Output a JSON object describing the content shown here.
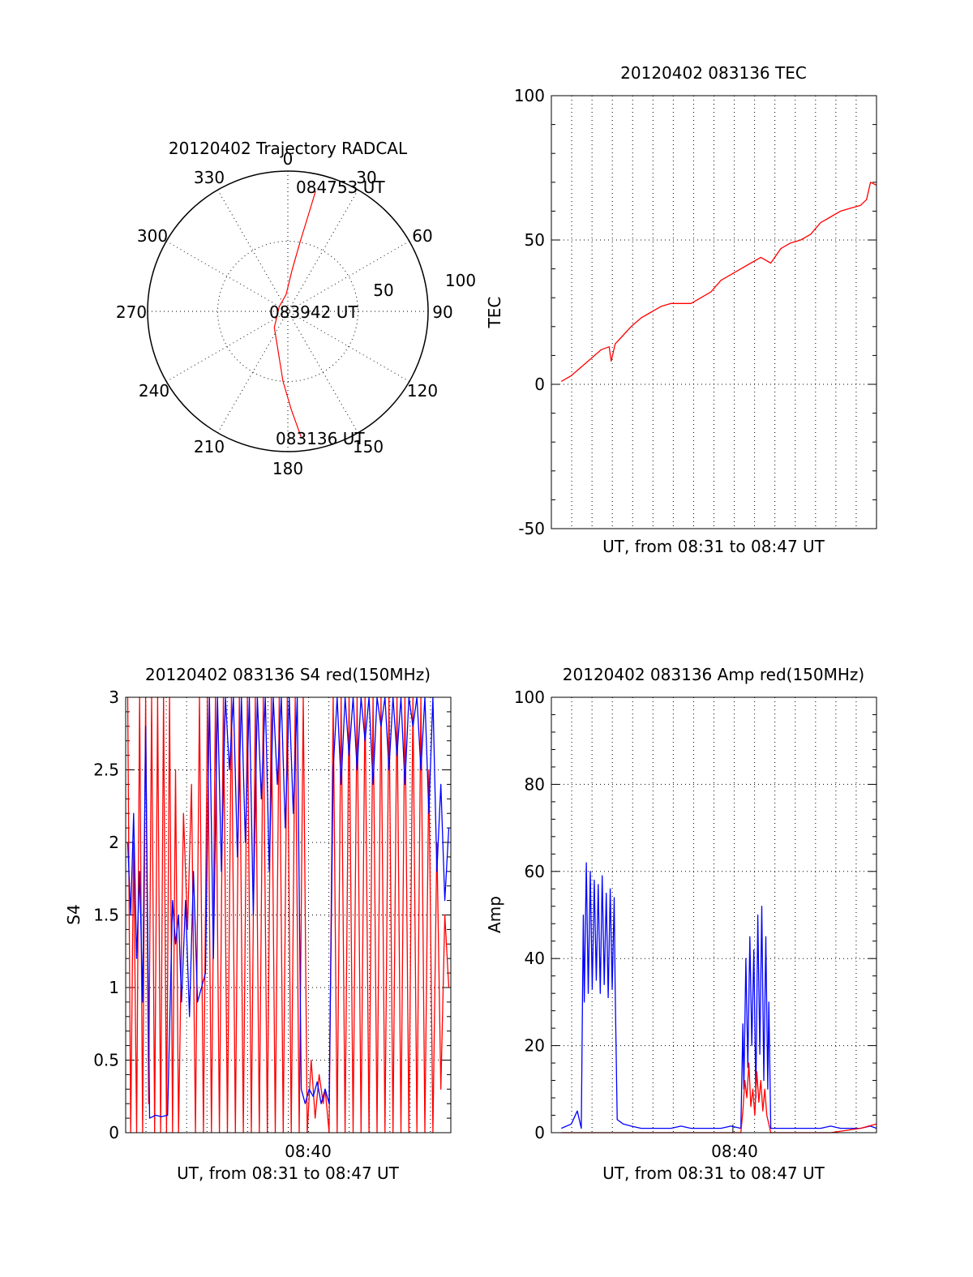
{
  "chart_data": [
    {
      "type": "polar",
      "title": "20120402 Trajectory RADCAL",
      "azimuth_labels": [
        "0",
        "30",
        "60",
        "90",
        "120",
        "150",
        "180",
        "210",
        "240",
        "270",
        "300",
        "330"
      ],
      "radial_labels": [
        "50",
        "100"
      ],
      "rlim": [
        0,
        100
      ],
      "grid": true,
      "series": [
        {
          "color": "#ff0000",
          "points": [
            {
              "az": 174,
              "r": 90
            },
            {
              "az": 178,
              "r": 70
            },
            {
              "az": 184,
              "r": 50
            },
            {
              "az": 193,
              "r": 30
            },
            {
              "az": 220,
              "r": 15
            },
            {
              "az": 300,
              "r": 7
            },
            {
              "az": 354,
              "r": 12
            },
            {
              "az": 6,
              "r": 30
            },
            {
              "az": 10,
              "r": 50
            },
            {
              "az": 12,
              "r": 70
            },
            {
              "az": 13,
              "r": 88
            }
          ]
        }
      ],
      "annotations": [
        "084753 UT",
        "083942 UT",
        "083136 UT"
      ]
    },
    {
      "type": "line",
      "title": "20120402 083136 TEC",
      "xlabel": "UT, from 08:31 to 08:47 UT",
      "ylabel": "TEC",
      "xlim": [
        0,
        16.3
      ],
      "ylim": [
        -50,
        100
      ],
      "yticks": [
        "100",
        "50",
        "0",
        "-50"
      ],
      "grid": true,
      "series": [
        {
          "color": "#ff0000",
          "x": [
            0.5,
            1.0,
            1.5,
            2.0,
            2.5,
            2.9,
            3.0,
            3.2,
            3.6,
            4.0,
            4.5,
            5.0,
            5.5,
            6.0,
            6.5,
            7.0,
            7.5,
            8.0,
            8.5,
            9.0,
            9.5,
            10.0,
            10.5,
            11.0,
            11.5,
            12.0,
            12.5,
            13.0,
            13.5,
            14.0,
            14.5,
            15.0,
            15.5,
            15.8,
            16.0,
            16.3
          ],
          "y": [
            1,
            3,
            6,
            9,
            12,
            13,
            8,
            14,
            17,
            20,
            23,
            25,
            27,
            28,
            28,
            28,
            30,
            32,
            36,
            38,
            40,
            42,
            44,
            42,
            47,
            49,
            50,
            52,
            56,
            58,
            60,
            61,
            62,
            64,
            70,
            69
          ]
        }
      ]
    },
    {
      "type": "line",
      "title": "20120402 083136 S4 red(150MHz)",
      "xlabel": "UT, from 08:31 to 08:47 UT",
      "ylabel": "S4",
      "xtick_label": "08:40",
      "xlim": [
        0,
        16.3
      ],
      "ylim": [
        0,
        3
      ],
      "yticks": [
        "3",
        "2.5",
        "2",
        "1.5",
        "1",
        "0.5",
        "0"
      ],
      "grid": true,
      "series": [
        {
          "color": "#ff0000",
          "x": [
            0.1,
            0.25,
            0.4,
            0.55,
            0.7,
            0.85,
            1.0,
            1.15,
            1.3,
            1.45,
            1.6,
            1.75,
            1.9,
            2.05,
            2.2,
            2.35,
            2.5,
            2.65,
            2.9,
            3.1,
            3.3,
            3.5,
            3.7,
            3.9,
            4.1,
            4.3,
            4.5,
            4.7,
            4.9,
            5.1,
            5.3,
            5.5,
            5.7,
            5.9,
            6.1,
            6.3,
            6.5,
            6.7,
            6.9,
            7.1,
            7.3,
            7.5,
            7.7,
            7.9,
            8.1,
            8.3,
            8.5,
            8.7,
            8.9,
            9.1,
            9.3,
            9.5,
            9.7,
            9.9,
            10.0,
            10.2,
            10.4,
            10.6,
            10.8,
            11.0,
            11.2,
            11.4,
            11.6,
            11.8,
            12.0,
            12.2,
            12.4,
            12.6,
            12.8,
            13.0,
            13.2,
            13.4,
            13.6,
            13.8,
            14.0,
            14.2,
            14.4,
            14.6,
            14.8,
            15.0,
            15.2,
            15.4,
            15.6,
            15.8,
            16.0,
            16.2
          ],
          "y": [
            3.0,
            0.0,
            2.0,
            0.0,
            3.0,
            0.0,
            3.0,
            0.2,
            3.0,
            0.0,
            3.0,
            0.0,
            3.0,
            0.0,
            3.0,
            0.0,
            2.5,
            0.0,
            2.2,
            1.4,
            2.4,
            0.0,
            3.0,
            0.0,
            3.0,
            0.0,
            3.0,
            0.0,
            3.0,
            0.0,
            3.0,
            0.0,
            3.0,
            0.0,
            3.0,
            0.0,
            3.0,
            0.0,
            3.0,
            0.0,
            3.0,
            0.0,
            3.0,
            0.0,
            3.0,
            0.0,
            3.0,
            0.0,
            3.0,
            0.0,
            0.5,
            0.1,
            0.4,
            0.2,
            0.3,
            0.0,
            3.0,
            0.0,
            3.0,
            0.0,
            3.0,
            0.0,
            3.0,
            0.0,
            3.0,
            0.0,
            3.0,
            0.0,
            3.0,
            0.0,
            3.0,
            0.0,
            3.0,
            0.0,
            3.0,
            0.0,
            3.0,
            0.0,
            3.0,
            0.0,
            2.5,
            0.0,
            2.0,
            0.3,
            1.5,
            1.0
          ]
        },
        {
          "color": "#0000ff",
          "x": [
            0.1,
            0.25,
            0.4,
            0.55,
            0.7,
            0.85,
            1.0,
            1.2,
            1.5,
            1.8,
            2.1,
            2.35,
            2.5,
            2.65,
            2.8,
            3.0,
            3.2,
            3.4,
            3.6,
            3.8,
            4.0,
            4.2,
            4.4,
            4.6,
            4.8,
            5.0,
            5.2,
            5.4,
            5.6,
            5.8,
            6.0,
            6.2,
            6.4,
            6.6,
            6.8,
            7.0,
            7.2,
            7.4,
            7.6,
            7.8,
            8.0,
            8.2,
            8.4,
            8.6,
            8.8,
            9.0,
            9.2,
            9.4,
            9.6,
            9.8,
            10.0,
            10.2,
            10.4,
            10.6,
            10.8,
            11.0,
            11.2,
            11.4,
            11.6,
            11.8,
            12.0,
            12.2,
            12.4,
            12.6,
            12.8,
            13.0,
            13.2,
            13.4,
            13.6,
            13.8,
            14.0,
            14.2,
            14.4,
            14.6,
            14.8,
            15.0,
            15.2,
            15.4,
            15.6,
            15.8,
            16.0,
            16.2
          ],
          "y": [
            2.0,
            1.5,
            2.2,
            1.2,
            1.8,
            0.9,
            2.8,
            0.1,
            0.12,
            0.11,
            0.12,
            1.6,
            1.3,
            1.5,
            0.9,
            1.6,
            0.8,
            1.8,
            0.9,
            1.0,
            1.1,
            3.0,
            1.2,
            3.0,
            1.8,
            3.0,
            2.5,
            3.0,
            1.9,
            3.0,
            2.0,
            3.0,
            1.5,
            3.0,
            2.3,
            3.0,
            1.8,
            3.0,
            2.4,
            3.0,
            2.1,
            3.0,
            2.2,
            3.0,
            0.3,
            0.2,
            0.3,
            0.25,
            0.35,
            0.2,
            0.3,
            0.2,
            2.5,
            3.0,
            2.4,
            3.0,
            2.6,
            3.0,
            2.5,
            3.0,
            2.7,
            3.0,
            2.4,
            3.0,
            2.8,
            3.0,
            2.5,
            3.0,
            2.6,
            3.0,
            2.4,
            3.0,
            2.8,
            3.0,
            2.5,
            3.0,
            2.2,
            3.0,
            1.8,
            2.4,
            1.6,
            2.1
          ]
        }
      ]
    },
    {
      "type": "line",
      "title": "20120402 083136 Amp red(150MHz)",
      "xlabel": "UT, from 08:31 to 08:47 UT",
      "ylabel": "Amp",
      "xtick_label": "08:40",
      "xlim": [
        0,
        16.3
      ],
      "ylim": [
        0,
        100
      ],
      "yticks": [
        "100",
        "80",
        "60",
        "40",
        "20",
        "0"
      ],
      "grid": true,
      "series": [
        {
          "color": "#0000ff",
          "x": [
            0.5,
            1.0,
            1.3,
            1.5,
            1.6,
            1.65,
            1.75,
            1.85,
            1.95,
            2.05,
            2.15,
            2.25,
            2.35,
            2.45,
            2.55,
            2.65,
            2.75,
            2.85,
            2.95,
            3.05,
            3.15,
            3.2,
            3.3,
            3.6,
            4.0,
            4.5,
            5.0,
            5.5,
            6.0,
            6.5,
            7.0,
            7.5,
            8.0,
            8.5,
            9.0,
            9.5,
            9.6,
            9.65,
            9.75,
            9.85,
            9.95,
            10.05,
            10.15,
            10.25,
            10.35,
            10.45,
            10.55,
            10.65,
            10.75,
            10.85,
            10.9,
            11.0,
            11.5,
            12.0,
            12.5,
            13.0,
            13.5,
            14.0,
            14.5,
            15.0,
            15.5,
            16.0,
            16.3
          ],
          "y": [
            1,
            2,
            5,
            1,
            50,
            30,
            62,
            32,
            60,
            33,
            58,
            35,
            57,
            32,
            59,
            34,
            55,
            31,
            56,
            33,
            54,
            33,
            3,
            2,
            1.5,
            1,
            1,
            1,
            1,
            1.5,
            1,
            1,
            1,
            1,
            1.5,
            1,
            25,
            10,
            40,
            15,
            45,
            20,
            42,
            8,
            50,
            18,
            52,
            12,
            45,
            10,
            30,
            1,
            1,
            1,
            1,
            1,
            1,
            1.5,
            1,
            1,
            1,
            1.5,
            1
          ]
        },
        {
          "color": "#ff0000",
          "x": [
            0.5,
            1.6,
            3.0,
            3.2,
            9.5,
            9.6,
            9.7,
            9.8,
            9.9,
            10.0,
            10.1,
            10.2,
            10.3,
            10.4,
            10.5,
            10.6,
            10.7,
            10.8,
            10.9,
            11.0,
            14.0,
            15.5,
            16.3
          ],
          "y": [
            0,
            0,
            0,
            0,
            0,
            5,
            12,
            8,
            16,
            6,
            10,
            4,
            14,
            7,
            12,
            5,
            10,
            4,
            2,
            0,
            0,
            1,
            2
          ]
        }
      ]
    }
  ]
}
